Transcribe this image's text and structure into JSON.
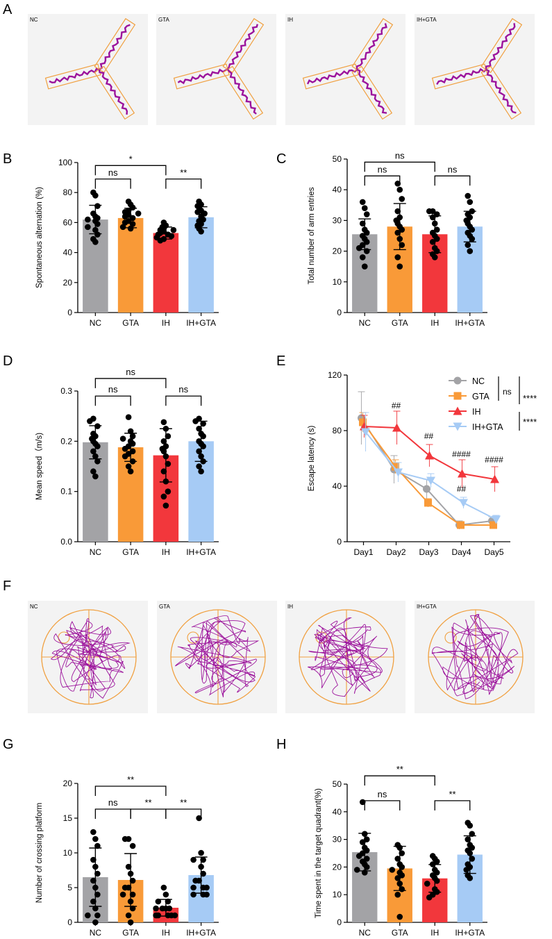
{
  "panels": {
    "A": {
      "letter": "A",
      "images": [
        {
          "label": "NC"
        },
        {
          "label": "GTA"
        },
        {
          "label": "IH"
        },
        {
          "label": "IH+GTA"
        }
      ]
    },
    "F": {
      "letter": "F",
      "images": [
        {
          "label": "NC"
        },
        {
          "label": "GTA"
        },
        {
          "label": "IH"
        },
        {
          "label": "IH+GTA"
        }
      ]
    }
  },
  "colors": {
    "NC": "#a3a3a6",
    "GTA": "#f99a38",
    "IH": "#f2373c",
    "IH+GTA": "#a6cbf5",
    "track": "#9c139c",
    "maze": "#f0a040"
  },
  "icons": {
    "ymaze": "y-maze-track-icon",
    "watermaze": "water-maze-track-icon"
  },
  "chart_data": [
    {
      "id": "B",
      "letter": "B",
      "type": "bar",
      "categories": [
        "NC",
        "GTA",
        "IH",
        "IH+GTA"
      ],
      "values": [
        62,
        63,
        53,
        63.5
      ],
      "sd": [
        9.5,
        6.5,
        4,
        7
      ],
      "points": [
        [
          80,
          78,
          71,
          66,
          64,
          63,
          62,
          61,
          59,
          57,
          55,
          52,
          49,
          47
        ],
        [
          74,
          72,
          70,
          68,
          67,
          66,
          65,
          64,
          63,
          61,
          60,
          59,
          57,
          56
        ],
        [
          60,
          58,
          57,
          56,
          55,
          55,
          54,
          53,
          52,
          52,
          51,
          50,
          49,
          48
        ],
        [
          74,
          72,
          71,
          70,
          68,
          67,
          66,
          64,
          62,
          61,
          59,
          58,
          56,
          54
        ]
      ],
      "ylabel": "Spontaneous alternation (%)",
      "xlabel": "",
      "ylim": [
        0,
        100
      ],
      "ticks": [
        0,
        20,
        40,
        60,
        80,
        100
      ],
      "brackets": [
        {
          "from": 0,
          "to": 2,
          "y": 98,
          "label": "*"
        },
        {
          "from": 0,
          "to": 1,
          "y": 89,
          "label": "ns"
        },
        {
          "from": 2,
          "to": 3,
          "y": 89,
          "label": "**"
        }
      ]
    },
    {
      "id": "C",
      "letter": "C",
      "type": "bar",
      "categories": [
        "NC",
        "GTA",
        "IH",
        "IH+GTA"
      ],
      "values": [
        25.5,
        28,
        25.5,
        28
      ],
      "sd": [
        5,
        7.5,
        6,
        5
      ],
      "points": [
        [
          36,
          34,
          32,
          29,
          27,
          26,
          25,
          24,
          23,
          22,
          21,
          20,
          18,
          15
        ],
        [
          42,
          40,
          37,
          33,
          31,
          30,
          29,
          28,
          27,
          26,
          24,
          22,
          18,
          15
        ],
        [
          33,
          33,
          32,
          31,
          29,
          27,
          26,
          25,
          24,
          23,
          21,
          20,
          19,
          18
        ],
        [
          38,
          36,
          33,
          32,
          31,
          30,
          29,
          28,
          27,
          26,
          25,
          24,
          22,
          20
        ]
      ],
      "ylabel": "Total number of arm entries",
      "xlabel": "",
      "ylim": [
        0,
        50
      ],
      "ticks": [
        0,
        10,
        20,
        30,
        40,
        50
      ],
      "brackets": [
        {
          "from": 0,
          "to": 2,
          "y": 49,
          "label": "ns"
        },
        {
          "from": 0,
          "to": 1,
          "y": 44.5,
          "label": "ns"
        },
        {
          "from": 2,
          "to": 3,
          "y": 44.5,
          "label": "ns"
        }
      ]
    },
    {
      "id": "D",
      "letter": "D",
      "type": "bar",
      "categories": [
        "NC",
        "GTA",
        "IH",
        "IH+GTA"
      ],
      "values": [
        0.198,
        0.188,
        0.172,
        0.2
      ],
      "sd": [
        0.033,
        0.028,
        0.053,
        0.04
      ],
      "points": [
        [
          0.245,
          0.24,
          0.23,
          0.215,
          0.21,
          0.205,
          0.2,
          0.195,
          0.19,
          0.18,
          0.17,
          0.16,
          0.14,
          0.13
        ],
        [
          0.248,
          0.22,
          0.21,
          0.205,
          0.2,
          0.195,
          0.19,
          0.185,
          0.18,
          0.175,
          0.17,
          0.16,
          0.15,
          0.14
        ],
        [
          0.238,
          0.225,
          0.21,
          0.2,
          0.19,
          0.185,
          0.18,
          0.17,
          0.155,
          0.14,
          0.12,
          0.1,
          0.09,
          0.072
        ],
        [
          0.245,
          0.24,
          0.235,
          0.225,
          0.215,
          0.21,
          0.2,
          0.195,
          0.19,
          0.18,
          0.17,
          0.16,
          0.15,
          0.14
        ]
      ],
      "ylabel": "Mean speed（m/s)",
      "xlabel": "",
      "ylim": [
        0,
        0.3
      ],
      "ticks": [
        0.0,
        0.1,
        0.2,
        0.3
      ],
      "tick_format": "1dp",
      "brackets": [
        {
          "from": 0,
          "to": 2,
          "y": 0.325,
          "label": "ns"
        },
        {
          "from": 0,
          "to": 1,
          "y": 0.29,
          "label": "ns"
        },
        {
          "from": 2,
          "to": 3,
          "y": 0.29,
          "label": "ns"
        }
      ]
    },
    {
      "id": "E",
      "letter": "E",
      "type": "line",
      "x": [
        "Day1",
        "Day2",
        "Day3",
        "Day4",
        "Day5"
      ],
      "series": [
        {
          "name": "NC",
          "marker": "circle",
          "values": [
            89,
            52,
            38,
            12,
            15
          ],
          "err": [
            19,
            10,
            7,
            3,
            3
          ]
        },
        {
          "name": "GTA",
          "marker": "square",
          "values": [
            86,
            54,
            28,
            12,
            12
          ],
          "err": [
            7,
            5,
            3,
            2,
            2
          ]
        },
        {
          "name": "IH",
          "marker": "triangle-up",
          "values": [
            83,
            82,
            62,
            49,
            45
          ],
          "err": [
            8,
            12,
            8,
            10,
            9
          ]
        },
        {
          "name": "IH+GTA",
          "marker": "triangle-down",
          "values": [
            79,
            50,
            44,
            28,
            16
          ],
          "err": [
            14,
            7,
            5,
            4,
            3
          ]
        }
      ],
      "ylabel": "Escape latency (s)",
      "xlabel": "",
      "ylim": [
        0,
        120
      ],
      "ticks": [
        0,
        40,
        80,
        120
      ],
      "annotations": [
        {
          "x": 1,
          "y": 96,
          "text": "##"
        },
        {
          "x": 2,
          "y": 74,
          "text": "##"
        },
        {
          "x": 3,
          "y": 61,
          "text": "####"
        },
        {
          "x": 3,
          "y": 36,
          "text": "##"
        },
        {
          "x": 4,
          "y": 57,
          "text": "####"
        }
      ],
      "legend_stats": {
        "ns": "ns",
        "sig1": "****",
        "sig2": "****"
      }
    },
    {
      "id": "G",
      "letter": "G",
      "type": "bar",
      "categories": [
        "NC",
        "GTA",
        "IH",
        "IH+GTA"
      ],
      "values": [
        6.5,
        6.1,
        2.1,
        6.8
      ],
      "sd": [
        4.2,
        3.8,
        1.2,
        2.6
      ],
      "points": [
        [
          13,
          12,
          11,
          9,
          8,
          7,
          6,
          5,
          4,
          3,
          2,
          1,
          1,
          0
        ],
        [
          12,
          12,
          11,
          8,
          7,
          6,
          5,
          5,
          4,
          4,
          3,
          2,
          1,
          0
        ],
        [
          5,
          4,
          3,
          3,
          2,
          2,
          2,
          2,
          1,
          1,
          1,
          1,
          1,
          1
        ],
        [
          15,
          10,
          9,
          9,
          8,
          7,
          6,
          6,
          5,
          5,
          5,
          4,
          4,
          4
        ]
      ],
      "ylabel": "Number of crossing platform",
      "xlabel": "",
      "ylim": [
        0,
        20
      ],
      "ticks": [
        0,
        5,
        10,
        15,
        20
      ],
      "brackets": [
        {
          "from": 0,
          "to": 2,
          "y": 19.6,
          "label": "**"
        },
        {
          "from": 0,
          "to": 1,
          "y": 16.3,
          "label": "ns"
        },
        {
          "from": 1,
          "to": 2,
          "y": 16.3,
          "label": "**"
        },
        {
          "from": 2,
          "to": 3,
          "y": 16.3,
          "label": "**"
        }
      ]
    },
    {
      "id": "H",
      "letter": "H",
      "type": "bar",
      "categories": [
        "NC",
        "GTA",
        "IH",
        "IH+GTA"
      ],
      "values": [
        25.4,
        19.5,
        15.9,
        24.5
      ],
      "sd": [
        6.8,
        8,
        5,
        6.8
      ],
      "points": [
        [
          43.5,
          32,
          30,
          29,
          27,
          26,
          25,
          24,
          23,
          22,
          21,
          20,
          19,
          18
        ],
        [
          28,
          27,
          25,
          23,
          21,
          20,
          19,
          18,
          17,
          16,
          14,
          12,
          10,
          2
        ],
        [
          24,
          23,
          22,
          21,
          19,
          18,
          17,
          16,
          15,
          14,
          12,
          11,
          10,
          9
        ],
        [
          36,
          35,
          32,
          30,
          28,
          27,
          26,
          25,
          23,
          21,
          20,
          19,
          17,
          16
        ]
      ],
      "ylabel": "Time spent in the target quadrant(%)",
      "xlabel": "",
      "ylim": [
        0,
        50
      ],
      "ticks": [
        0,
        10,
        20,
        30,
        40,
        50
      ],
      "brackets": [
        {
          "from": 0,
          "to": 2,
          "y": 53,
          "label": "**"
        },
        {
          "from": 0,
          "to": 1,
          "y": 44,
          "label": "ns"
        },
        {
          "from": 2,
          "to": 3,
          "y": 44,
          "label": "**"
        }
      ]
    }
  ]
}
